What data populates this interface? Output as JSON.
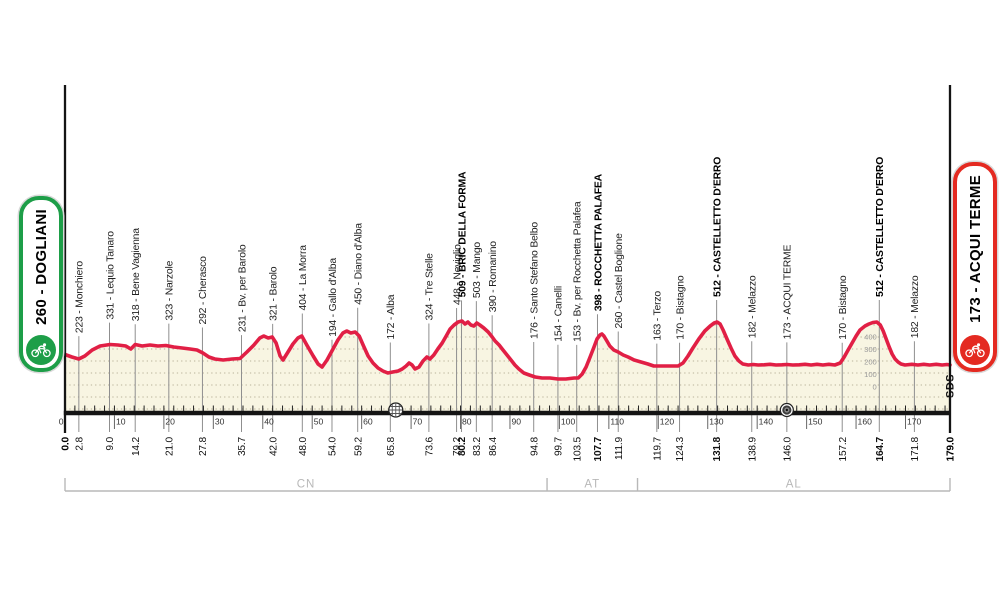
{
  "colors": {
    "profile_red": "#e11f45",
    "area_fill": "#f8f5e2",
    "grid_dot": "#b9b29a",
    "marker_line": "#8f8f8f",
    "start_green": "#1d9e48",
    "finish_red": "#e42a21",
    "province_gray": "#b8b8b8",
    "axis_black": "#141414"
  },
  "start_badge": {
    "label": "260 - DOGLIANI"
  },
  "finish_badge": {
    "label": "173 - ACQUI TERME"
  },
  "watermark": "SDS",
  "chart_data": {
    "type": "area",
    "x_unit": "km",
    "y_unit": "m",
    "x_range": [
      0,
      179
    ],
    "axis": {
      "major_ticks": [
        0,
        10,
        20,
        30,
        40,
        50,
        60,
        70,
        80,
        90,
        100,
        110,
        120,
        130,
        140,
        150,
        160,
        170
      ],
      "minor_step": 2
    },
    "start": {
      "km": 0.0,
      "name": "DOGLIANI",
      "elev": 260
    },
    "finish": {
      "km": 179.0,
      "name": "ACQUI TERME",
      "elev": 173
    },
    "markers": [
      {
        "km": 2.8,
        "elev": 223,
        "label": "223 - Monchiero"
      },
      {
        "km": 9.0,
        "elev": 331,
        "label": "331 - Lequio Tanaro"
      },
      {
        "km": 14.2,
        "elev": 318,
        "label": "318 - Bene Vagienna"
      },
      {
        "km": 21.0,
        "elev": 323,
        "label": "323 - Narzole"
      },
      {
        "km": 27.8,
        "elev": 292,
        "label": "292 - Cherasco"
      },
      {
        "km": 35.7,
        "elev": 231,
        "label": "231 - Bv. per Barolo"
      },
      {
        "km": 42.0,
        "elev": 321,
        "label": "321 - Barolo"
      },
      {
        "km": 48.0,
        "elev": 404,
        "label": "404 - La Morra"
      },
      {
        "km": 54.0,
        "elev": 194,
        "label": "194 - Gallo d'Alba"
      },
      {
        "km": 59.2,
        "elev": 450,
        "label": "450 - Diano d'Alba"
      },
      {
        "km": 65.8,
        "elev": 172,
        "label": "172 - Alba"
      },
      {
        "km": 73.6,
        "elev": 324,
        "label": "324 - Tre Stelle"
      },
      {
        "km": 79.2,
        "elev": 448,
        "label": "448 - Neviglio"
      },
      {
        "km": 80.2,
        "elev": 509,
        "label": "509 - BRIC DELLA FORMA",
        "bold": true
      },
      {
        "km": 83.2,
        "elev": 503,
        "label": "503 - Mango"
      },
      {
        "km": 86.4,
        "elev": 390,
        "label": "390 - Romanino"
      },
      {
        "km": 94.8,
        "elev": 176,
        "label": "176 - Santo Stefano Belbo"
      },
      {
        "km": 99.7,
        "elev": 154,
        "label": "154 - Canelli"
      },
      {
        "km": 103.5,
        "elev": 153,
        "label": "153 - Bv. per Rocchetta Palafea"
      },
      {
        "km": 107.7,
        "elev": 398,
        "label": "398 - ROCCHETTA PALAFEA",
        "bold": true
      },
      {
        "km": 111.9,
        "elev": 260,
        "label": "260 - Castel Boglione"
      },
      {
        "km": 119.7,
        "elev": 163,
        "label": "163 - Terzo"
      },
      {
        "km": 124.3,
        "elev": 170,
        "label": "170 - Bistagno"
      },
      {
        "km": 131.8,
        "elev": 512,
        "label": "512 - CASTELLETTO D'ERRO",
        "bold": true
      },
      {
        "km": 138.9,
        "elev": 182,
        "label": "182 - Melazzo"
      },
      {
        "km": 146.0,
        "elev": 173,
        "label": "173 - ACQUI TERME"
      },
      {
        "km": 157.2,
        "elev": 170,
        "label": "170 - Bistagno"
      },
      {
        "km": 164.7,
        "elev": 512,
        "label": "512 - CASTELLETTO D'ERRO",
        "bold": true
      },
      {
        "km": 171.8,
        "elev": 182,
        "label": "182 - Melazzo"
      }
    ],
    "provinces": [
      {
        "code": "CN",
        "from_km": 0,
        "to_km": 97.5
      },
      {
        "code": "AT",
        "from_km": 97.5,
        "to_km": 115.8
      },
      {
        "code": "AL",
        "from_km": 115.8,
        "to_km": 179
      }
    ],
    "icons": [
      {
        "name": "feed-zone",
        "km": 66.9
      },
      {
        "name": "intermediate-sprint",
        "km": 146.0
      }
    ],
    "elevation_scale": {
      "at_km": 164.7,
      "values": [
        400,
        300,
        200,
        100,
        0
      ]
    },
    "profile": [
      [
        0,
        260
      ],
      [
        1.4,
        240
      ],
      [
        2.8,
        224
      ],
      [
        4,
        248
      ],
      [
        5.5,
        296
      ],
      [
        7.1,
        328
      ],
      [
        9.1,
        340
      ],
      [
        10.7,
        336
      ],
      [
        12.3,
        328
      ],
      [
        13.3,
        304
      ],
      [
        14.2,
        340
      ],
      [
        15.6,
        328
      ],
      [
        17.2,
        336
      ],
      [
        18.8,
        328
      ],
      [
        20.4,
        332
      ],
      [
        22,
        320
      ],
      [
        23.7,
        312
      ],
      [
        25.3,
        304
      ],
      [
        26.7,
        296
      ],
      [
        27.9,
        272
      ],
      [
        29.1,
        240
      ],
      [
        30.3,
        224
      ],
      [
        32,
        216
      ],
      [
        33.8,
        224
      ],
      [
        35.4,
        228
      ],
      [
        36.8,
        280
      ],
      [
        38.2,
        336
      ],
      [
        39.4,
        392
      ],
      [
        40.2,
        408
      ],
      [
        41.1,
        392
      ],
      [
        41.9,
        400
      ],
      [
        42.7,
        352
      ],
      [
        43.5,
        248
      ],
      [
        44.1,
        216
      ],
      [
        45.1,
        280
      ],
      [
        46.1,
        344
      ],
      [
        47.1,
        392
      ],
      [
        47.9,
        408
      ],
      [
        48.9,
        336
      ],
      [
        50.2,
        248
      ],
      [
        51.2,
        184
      ],
      [
        52,
        160
      ],
      [
        53,
        216
      ],
      [
        54.2,
        304
      ],
      [
        55.2,
        376
      ],
      [
        56.2,
        432
      ],
      [
        57,
        448
      ],
      [
        57.8,
        432
      ],
      [
        58.7,
        440
      ],
      [
        59.5,
        408
      ],
      [
        60.3,
        336
      ],
      [
        61.3,
        248
      ],
      [
        62.3,
        192
      ],
      [
        63.3,
        152
      ],
      [
        64.3,
        128
      ],
      [
        65.3,
        112
      ],
      [
        66.3,
        120
      ],
      [
        67.4,
        128
      ],
      [
        68.2,
        144
      ],
      [
        69,
        168
      ],
      [
        69.6,
        192
      ],
      [
        70.2,
        176
      ],
      [
        70.8,
        144
      ],
      [
        71.6,
        160
      ],
      [
        72.4,
        208
      ],
      [
        73.2,
        240
      ],
      [
        73.8,
        224
      ],
      [
        74.6,
        256
      ],
      [
        75.4,
        304
      ],
      [
        76.3,
        352
      ],
      [
        77.1,
        408
      ],
      [
        77.9,
        464
      ],
      [
        78.7,
        496
      ],
      [
        79.5,
        520
      ],
      [
        80.3,
        528
      ],
      [
        80.9,
        504
      ],
      [
        81.5,
        520
      ],
      [
        82.1,
        496
      ],
      [
        82.7,
        488
      ],
      [
        83.3,
        512
      ],
      [
        83.9,
        496
      ],
      [
        84.7,
        472
      ],
      [
        85.6,
        440
      ],
      [
        86.4,
        400
      ],
      [
        87,
        368
      ],
      [
        87.8,
        336
      ],
      [
        88.6,
        296
      ],
      [
        89.4,
        256
      ],
      [
        90.2,
        216
      ],
      [
        91,
        176
      ],
      [
        91.8,
        144
      ],
      [
        92.8,
        112
      ],
      [
        93.9,
        96
      ],
      [
        95.1,
        80
      ],
      [
        96.5,
        72
      ],
      [
        98.1,
        72
      ],
      [
        99.7,
        64
      ],
      [
        101.3,
        64
      ],
      [
        103,
        72
      ],
      [
        103.8,
        72
      ],
      [
        104.6,
        104
      ],
      [
        105.4,
        160
      ],
      [
        106.2,
        240
      ],
      [
        107,
        320
      ],
      [
        107.6,
        384
      ],
      [
        108.2,
        416
      ],
      [
        108.6,
        424
      ],
      [
        109,
        408
      ],
      [
        109.6,
        368
      ],
      [
        110.2,
        328
      ],
      [
        111,
        296
      ],
      [
        111.9,
        280
      ],
      [
        112.9,
        256
      ],
      [
        113.9,
        240
      ],
      [
        115.1,
        216
      ],
      [
        116.5,
        200
      ],
      [
        117.9,
        184
      ],
      [
        119.1,
        168
      ],
      [
        120.3,
        168
      ],
      [
        121.6,
        168
      ],
      [
        122.8,
        168
      ],
      [
        124,
        168
      ],
      [
        125,
        192
      ],
      [
        126,
        248
      ],
      [
        127,
        312
      ],
      [
        128.2,
        384
      ],
      [
        129.4,
        448
      ],
      [
        130.5,
        488
      ],
      [
        131.3,
        512
      ],
      [
        131.9,
        520
      ],
      [
        132.5,
        504
      ],
      [
        133.1,
        456
      ],
      [
        133.9,
        384
      ],
      [
        134.7,
        312
      ],
      [
        135.5,
        248
      ],
      [
        136.3,
        208
      ],
      [
        137.1,
        184
      ],
      [
        138.2,
        176
      ],
      [
        139.2,
        180
      ],
      [
        140.2,
        176
      ],
      [
        141.4,
        178
      ],
      [
        142.6,
        182
      ],
      [
        143.8,
        176
      ],
      [
        145,
        178
      ],
      [
        146,
        180
      ],
      [
        147.2,
        176
      ],
      [
        148.5,
        178
      ],
      [
        149.7,
        182
      ],
      [
        150.9,
        176
      ],
      [
        152.1,
        182
      ],
      [
        153.3,
        176
      ],
      [
        154.5,
        182
      ],
      [
        155.7,
        176
      ],
      [
        156.8,
        192
      ],
      [
        157.6,
        240
      ],
      [
        158.4,
        296
      ],
      [
        159.2,
        352
      ],
      [
        160,
        408
      ],
      [
        160.8,
        456
      ],
      [
        161.8,
        488
      ],
      [
        162.6,
        504
      ],
      [
        163.4,
        516
      ],
      [
        164.2,
        520
      ],
      [
        164.9,
        496
      ],
      [
        165.5,
        448
      ],
      [
        166.1,
        384
      ],
      [
        166.7,
        320
      ],
      [
        167.3,
        264
      ],
      [
        167.9,
        224
      ],
      [
        168.5,
        200
      ],
      [
        169.1,
        184
      ],
      [
        169.9,
        176
      ],
      [
        171.3,
        182
      ],
      [
        172.5,
        176
      ],
      [
        173.7,
        182
      ],
      [
        174.9,
        176
      ],
      [
        176.2,
        182
      ],
      [
        177.4,
        176
      ],
      [
        178.4,
        180
      ],
      [
        179,
        176
      ]
    ]
  }
}
